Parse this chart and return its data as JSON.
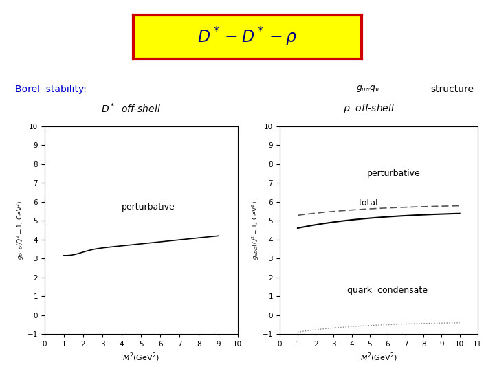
{
  "borel_label": "Borel  stability:",
  "structure_label": "structure",
  "left_title": "$D^*$  off-shell",
  "right_title": "$\\rho$  off-shell",
  "left_xlabel": "$M^2(GeV^2)$",
  "right_xlabel": "$M^2(GeV^2)$",
  "left_ylabel": "$g_{D^*D}(Q^2=1, GeV^2)$",
  "right_ylabel": "$g_{\\rho DD}(Q^2=1, GeV^2)$",
  "left_xlim": [
    0,
    10
  ],
  "left_ylim": [
    -1,
    10
  ],
  "right_xlim": [
    0,
    11
  ],
  "right_ylim": [
    -1,
    10
  ],
  "left_xticks": [
    0,
    1,
    2,
    3,
    4,
    5,
    6,
    7,
    8,
    9,
    10
  ],
  "left_yticks": [
    -1,
    0,
    1,
    2,
    3,
    4,
    5,
    6,
    7,
    8,
    9,
    10
  ],
  "right_xticks": [
    0,
    1,
    2,
    3,
    4,
    5,
    6,
    7,
    8,
    9,
    10,
    11
  ],
  "right_yticks": [
    -1,
    0,
    1,
    2,
    3,
    4,
    5,
    6,
    7,
    8,
    9,
    10
  ],
  "background_color": "#ffffff",
  "title_box_facecolor": "#ffff00",
  "title_box_edgecolor": "#cc0000",
  "title_text_color": "#000080"
}
